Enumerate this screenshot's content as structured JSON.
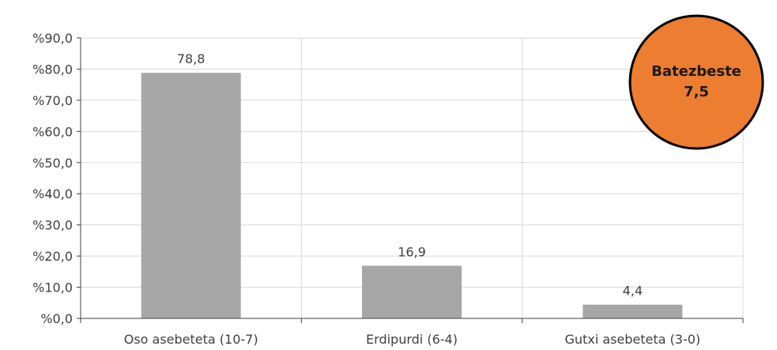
{
  "chart_data": {
    "type": "bar",
    "categories": [
      "Oso asebeteta (10-7)",
      "Erdipurdi (6-4)",
      "Gutxi asebeteta (3-0)"
    ],
    "values": [
      78.8,
      16.9,
      4.4
    ],
    "data_labels": [
      "78,8",
      "16,9",
      "4,4"
    ],
    "ylim": [
      0,
      90
    ],
    "y_ticks": [
      0,
      10,
      20,
      30,
      40,
      50,
      60,
      70,
      80,
      90
    ],
    "y_tick_labels": [
      "%0,0",
      "%10,0",
      "%20,0",
      "%30,0",
      "%40,0",
      "%50,0",
      "%60,0",
      "%70,0",
      "%80,0",
      "%90,0"
    ],
    "grid": true,
    "bar_color": "#a6a6a6",
    "grid_color": "#d9d9d9",
    "axis_color": "#404040"
  },
  "badge": {
    "label": "Batezbeste",
    "value": "7,5",
    "fill": "#ed7d31",
    "stroke": "#000000"
  }
}
